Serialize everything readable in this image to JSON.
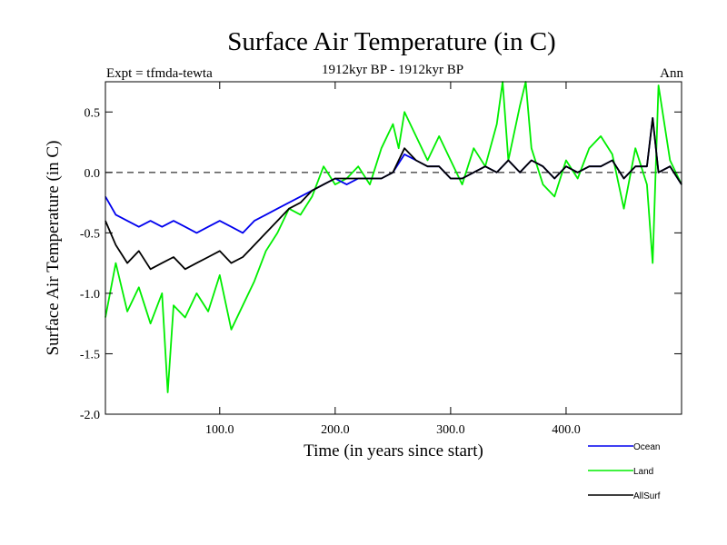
{
  "chart_data": {
    "type": "line",
    "title": "Surface Air Temperature (in C)",
    "subtitle": "1912kyr BP - 1912kyr BP",
    "experiment": "Expt = tfmda-tewta",
    "season": "Ann",
    "xlabel": "Time (in years since start)",
    "ylabel": "Surface Air Temperature (in C)",
    "xlim": [
      1,
      500
    ],
    "ylim": [
      -2.0,
      0.75
    ],
    "xticks": [
      100,
      200,
      300,
      400
    ],
    "xtick_labels": [
      "100.0",
      "200.0",
      "300.0",
      "400.0"
    ],
    "yticks": [
      -2.0,
      -1.5,
      -1.0,
      -0.5,
      0.0,
      0.5
    ],
    "ytick_labels": [
      "-2.0",
      "-1.5",
      "-1.0",
      "-0.5",
      "0.0",
      "0.5"
    ],
    "reference_line": {
      "y": 0.0,
      "style": "dashed"
    },
    "series": [
      {
        "name": "Land",
        "color": "#00ee00",
        "x": [
          1,
          10,
          20,
          30,
          40,
          50,
          55,
          60,
          70,
          80,
          90,
          100,
          110,
          120,
          130,
          140,
          150,
          160,
          170,
          180,
          190,
          200,
          210,
          220,
          230,
          240,
          250,
          255,
          260,
          270,
          280,
          290,
          300,
          310,
          320,
          330,
          340,
          345,
          350,
          360,
          365,
          370,
          380,
          390,
          400,
          410,
          420,
          430,
          440,
          450,
          460,
          470,
          475,
          480,
          490,
          500
        ],
        "values": [
          -1.2,
          -0.75,
          -1.15,
          -0.95,
          -1.25,
          -1.0,
          -1.82,
          -1.1,
          -1.2,
          -1.0,
          -1.15,
          -0.85,
          -1.3,
          -1.1,
          -0.9,
          -0.65,
          -0.5,
          -0.3,
          -0.35,
          -0.2,
          0.05,
          -0.1,
          -0.05,
          0.05,
          -0.1,
          0.2,
          0.4,
          0.2,
          0.5,
          0.3,
          0.1,
          0.3,
          0.1,
          -0.1,
          0.2,
          0.05,
          0.4,
          0.75,
          0.1,
          0.55,
          0.75,
          0.2,
          -0.1,
          -0.2,
          0.1,
          -0.05,
          0.2,
          0.3,
          0.15,
          -0.3,
          0.2,
          -0.1,
          -0.75,
          0.72,
          0.1,
          -0.1
        ]
      },
      {
        "name": "Ocean",
        "color": "#0000ee",
        "x": [
          1,
          10,
          20,
          30,
          40,
          50,
          60,
          70,
          80,
          90,
          100,
          110,
          120,
          130,
          140,
          150,
          160,
          170,
          180,
          190,
          200,
          210,
          220,
          230,
          240,
          250,
          260,
          270,
          280,
          290,
          300,
          310,
          320,
          330,
          340,
          350,
          360,
          370,
          380,
          390,
          400,
          410,
          420,
          430,
          440,
          450,
          460,
          470,
          475,
          480,
          490,
          500
        ],
        "values": [
          -0.2,
          -0.35,
          -0.4,
          -0.45,
          -0.4,
          -0.45,
          -0.4,
          -0.45,
          -0.5,
          -0.45,
          -0.4,
          -0.45,
          -0.5,
          -0.4,
          -0.35,
          -0.3,
          -0.25,
          -0.2,
          -0.15,
          -0.1,
          -0.05,
          -0.1,
          -0.05,
          -0.05,
          -0.05,
          0.0,
          0.15,
          0.1,
          0.05,
          0.05,
          -0.05,
          -0.05,
          0.0,
          0.05,
          0.0,
          0.1,
          0.0,
          0.1,
          0.05,
          -0.05,
          0.05,
          0.0,
          0.05,
          0.05,
          0.1,
          -0.05,
          0.05,
          0.05,
          0.45,
          0.0,
          0.05,
          -0.1
        ]
      },
      {
        "name": "AllSurf",
        "color": "#000000",
        "x": [
          1,
          10,
          20,
          30,
          40,
          50,
          60,
          70,
          80,
          90,
          100,
          110,
          120,
          130,
          140,
          150,
          160,
          170,
          180,
          190,
          200,
          210,
          220,
          230,
          240,
          250,
          260,
          270,
          280,
          290,
          300,
          310,
          320,
          330,
          340,
          350,
          360,
          370,
          380,
          390,
          400,
          410,
          420,
          430,
          440,
          450,
          460,
          470,
          475,
          480,
          490,
          500
        ],
        "values": [
          -0.4,
          -0.6,
          -0.75,
          -0.65,
          -0.8,
          -0.75,
          -0.7,
          -0.8,
          -0.75,
          -0.7,
          -0.65,
          -0.75,
          -0.7,
          -0.6,
          -0.5,
          -0.4,
          -0.3,
          -0.25,
          -0.15,
          -0.1,
          -0.05,
          -0.05,
          -0.05,
          -0.05,
          -0.05,
          0.0,
          0.2,
          0.1,
          0.05,
          0.05,
          -0.05,
          -0.05,
          0.0,
          0.05,
          0.0,
          0.1,
          0.0,
          0.1,
          0.05,
          -0.05,
          0.05,
          0.0,
          0.05,
          0.05,
          0.1,
          -0.05,
          0.05,
          0.05,
          0.45,
          0.0,
          0.05,
          -0.1
        ]
      }
    ],
    "legend_position": "bottom-right",
    "grid": false
  }
}
